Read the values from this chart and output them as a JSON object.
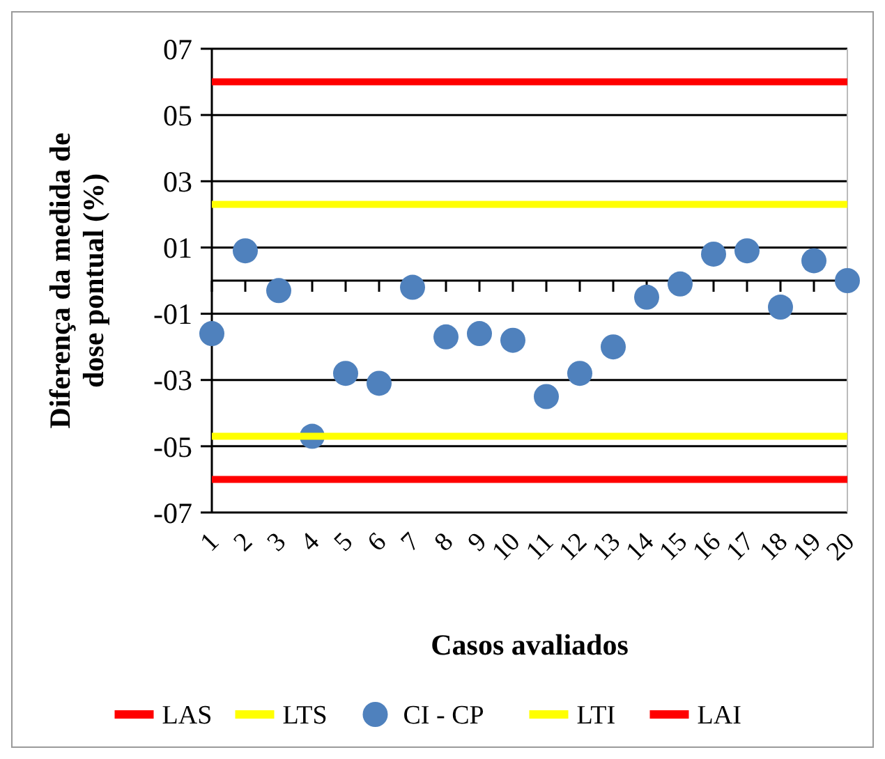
{
  "chart_data": {
    "type": "scatter",
    "xlabel": "Casos avaliados",
    "ylabel": "Diferença da medida de dose pontual (%)",
    "categories": [
      "1",
      "2",
      "3",
      "4",
      "5",
      "6",
      "7",
      "8",
      "9",
      "10",
      "11",
      "12",
      "13",
      "14",
      "15",
      "16",
      "17",
      "18",
      "19",
      "20"
    ],
    "ylim": [
      -7,
      7
    ],
    "yticks": [
      {
        "value": -7,
        "label": "-07"
      },
      {
        "value": -5,
        "label": "-05"
      },
      {
        "value": -3,
        "label": "-03"
      },
      {
        "value": -1,
        "label": "-01"
      },
      {
        "value": 1,
        "label": "01"
      },
      {
        "value": 3,
        "label": "03"
      },
      {
        "value": 5,
        "label": "05"
      },
      {
        "value": 7,
        "label": "07"
      }
    ],
    "grid": "y",
    "legend": "bottom",
    "series": [
      {
        "name": "LAS",
        "type": "line",
        "color": "#ff0000",
        "values": [
          6,
          6,
          6,
          6,
          6,
          6,
          6,
          6,
          6,
          6,
          6,
          6,
          6,
          6,
          6,
          6,
          6,
          6,
          6,
          6
        ]
      },
      {
        "name": "LTS",
        "type": "line",
        "color": "#ffff00",
        "values": [
          2.3,
          2.3,
          2.3,
          2.3,
          2.3,
          2.3,
          2.3,
          2.3,
          2.3,
          2.3,
          2.3,
          2.3,
          2.3,
          2.3,
          2.3,
          2.3,
          2.3,
          2.3,
          2.3,
          2.3
        ]
      },
      {
        "name": "CI - CP",
        "marker": "circle",
        "color": "#4f81bd",
        "values": [
          -1.6,
          0.9,
          -0.3,
          -4.7,
          -2.8,
          -3.1,
          -0.2,
          -1.7,
          -1.6,
          -1.8,
          -3.5,
          -2.8,
          -2.0,
          -0.5,
          -0.1,
          0.8,
          0.9,
          -0.8,
          0.6,
          0.0
        ]
      },
      {
        "name": "LTI",
        "type": "line",
        "color": "#ffff00",
        "values": [
          -4.7,
          -4.7,
          -4.7,
          -4.7,
          -4.7,
          -4.7,
          -4.7,
          -4.7,
          -4.7,
          -4.7,
          -4.7,
          -4.7,
          -4.7,
          -4.7,
          -4.7,
          -4.7,
          -4.7,
          -4.7,
          -4.7,
          -4.7
        ]
      },
      {
        "name": "LAI",
        "type": "line",
        "color": "#ff0000",
        "values": [
          -6,
          -6,
          -6,
          -6,
          -6,
          -6,
          -6,
          -6,
          -6,
          -6,
          -6,
          -6,
          -6,
          -6,
          -6,
          -6,
          -6,
          -6,
          -6,
          -6
        ]
      }
    ]
  }
}
